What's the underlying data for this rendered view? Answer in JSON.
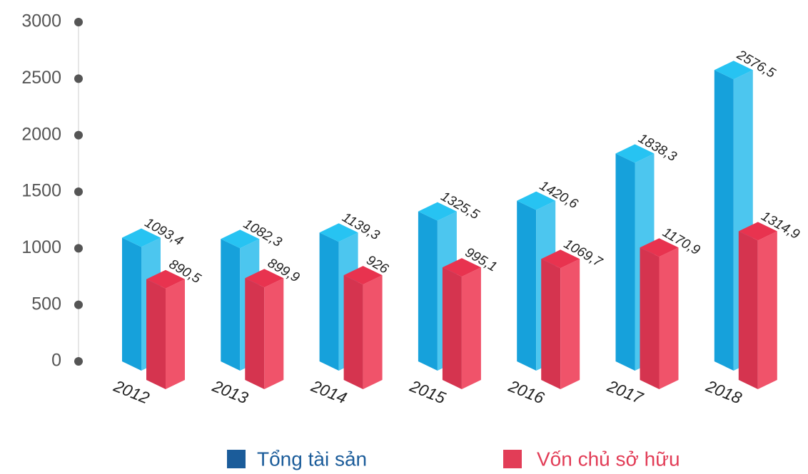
{
  "chart_data": {
    "type": "bar3d",
    "categories": [
      "2012",
      "2013",
      "2014",
      "2015",
      "2016",
      "2017",
      "2018"
    ],
    "series": [
      {
        "name": "Tổng tài sản",
        "color": "#1ba4de",
        "values": [
          1093.4,
          1082.3,
          1139.3,
          1325.5,
          1420.6,
          1838.3,
          2576.5
        ],
        "value_labels": [
          "1093,4",
          "1082,3",
          "1139,3",
          "1325,5",
          "1420,6",
          "1838,3",
          "2576,5"
        ]
      },
      {
        "name": "Vốn chủ sở hữu",
        "color": "#e23d57",
        "values": [
          890.5,
          899.9,
          926,
          995.1,
          1069.7,
          1170.9,
          1314.9
        ],
        "value_labels": [
          "890,5",
          "899,9",
          "926",
          "995,1",
          "1069,7",
          "1170,9",
          "1314,9"
        ]
      }
    ],
    "ylim": [
      0,
      3000
    ],
    "yticks": [
      0,
      500,
      1000,
      1500,
      2000,
      2500,
      3000
    ],
    "legend": "bottom"
  }
}
